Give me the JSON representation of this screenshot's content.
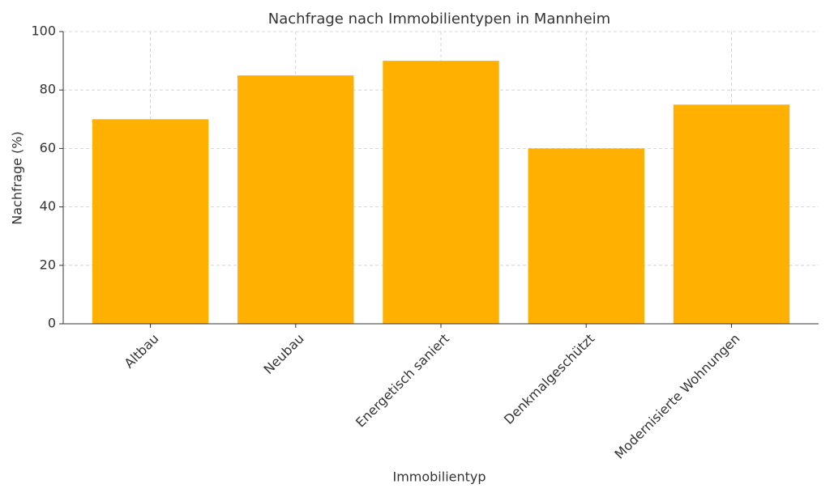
{
  "chart_data": {
    "type": "bar",
    "title": "Nachfrage nach Immobilientypen in Mannheim",
    "x_label": "Immobilientyp",
    "y_label": "Nachfrage (%)",
    "categories": [
      "Altbau",
      "Neubau",
      "Energetisch saniert",
      "Denkmalgeschützt",
      "Modernisierte Wohnungen"
    ],
    "values": [
      70,
      85,
      90,
      60,
      75
    ],
    "color": "#ffb000",
    "ylim": [
      0,
      100
    ],
    "yticks": [
      0,
      20,
      40,
      60,
      80,
      100
    ],
    "grid": true
  }
}
